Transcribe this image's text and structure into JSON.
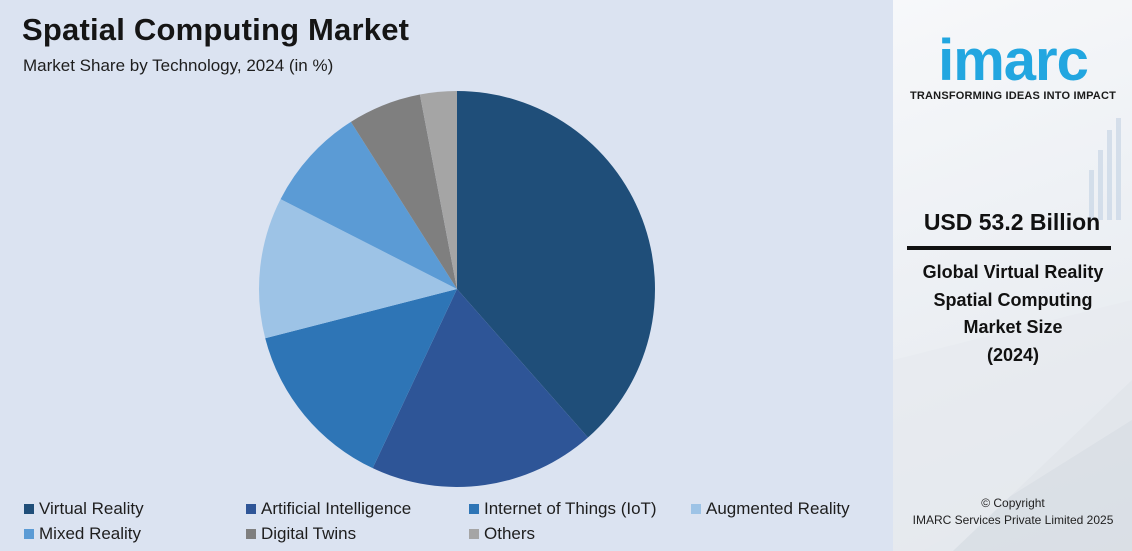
{
  "title": "Spatial Computing Market",
  "subtitle": "Market Share by Technology, 2024 (in %)",
  "chart_data": {
    "type": "pie",
    "title": "Spatial Computing Market",
    "subtitle": "Market Share by Technology, 2024 (in %)",
    "unit": "%",
    "legend_position": "bottom",
    "slices": [
      {
        "label": "Virtual Reality",
        "value": 38.5,
        "color": "#1f4e79"
      },
      {
        "label": "Artificial Intelligence",
        "value": 18.5,
        "color": "#2e5597"
      },
      {
        "label": "Internet of Things (IoT)",
        "value": 14.0,
        "color": "#2e75b6"
      },
      {
        "label": "Augmented Reality",
        "value": 11.5,
        "color": "#9dc3e6"
      },
      {
        "label": "Mixed Reality",
        "value": 8.5,
        "color": "#5b9bd5"
      },
      {
        "label": "Digital Twins",
        "value": 6.0,
        "color": "#7f7f7f"
      },
      {
        "label": "Others",
        "value": 3.0,
        "color": "#a5a5a5"
      }
    ]
  },
  "sidebar": {
    "logo": "imarc",
    "tagline": "TRANSFORMING IDEAS INTO IMPACT",
    "market_value": "USD 53.2 Billion",
    "market_desc_lines": [
      "Global Virtual Reality",
      "Spatial Computing",
      "Market Size",
      "(2024)"
    ],
    "copyright_line1": "© Copyright",
    "copyright_line2": "IMARC Services Private Limited 2025",
    "logo_color": "#22a6e0"
  }
}
